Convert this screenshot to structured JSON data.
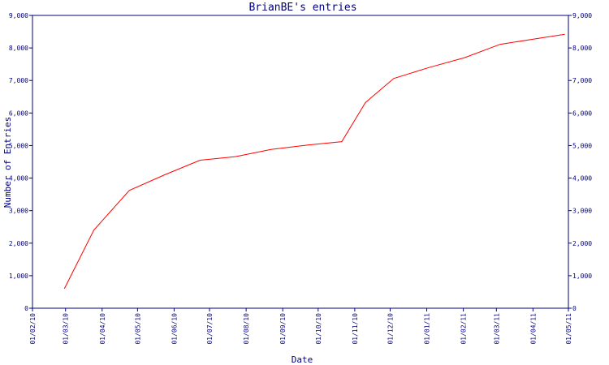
{
  "chart_data": {
    "type": "line",
    "title": "BrianBE's entries",
    "xlabel": "Date",
    "ylabel": "Number of Entries",
    "x_ticks": [
      "01/02/10",
      "01/03/10",
      "01/04/10",
      "01/05/10",
      "01/06/10",
      "01/07/10",
      "01/08/10",
      "01/09/10",
      "01/10/10",
      "01/11/10",
      "01/12/10",
      "01/01/11",
      "01/02/11",
      "01/03/11",
      "01/04/11",
      "01/05/11"
    ],
    "y_ticks": [
      "0",
      "1,000",
      "2,000",
      "3,000",
      "4,000",
      "5,000",
      "6,000",
      "7,000",
      "8,000",
      "9,000"
    ],
    "ylim": [
      0,
      9000
    ],
    "xlim": [
      "2010-02-01",
      "2011-05-01"
    ],
    "grid": false,
    "legend": "none",
    "colors": {
      "axis": "#000080",
      "series": "#ff0000"
    },
    "series": [
      {
        "x": [
          "2010-02-28",
          "2010-03-25",
          "2010-04-24",
          "2010-05-24",
          "2010-06-23",
          "2010-07-23",
          "2010-08-22",
          "2010-09-21",
          "2010-10-21",
          "2010-11-10",
          "2010-12-04",
          "2011-01-03",
          "2011-02-02",
          "2011-03-04",
          "2011-04-03",
          "2011-04-28"
        ],
        "y": [
          600,
          2400,
          3620,
          4100,
          4550,
          4660,
          4880,
          5010,
          5120,
          6320,
          7060,
          7400,
          7700,
          8110,
          8280,
          8420
        ]
      }
    ]
  }
}
